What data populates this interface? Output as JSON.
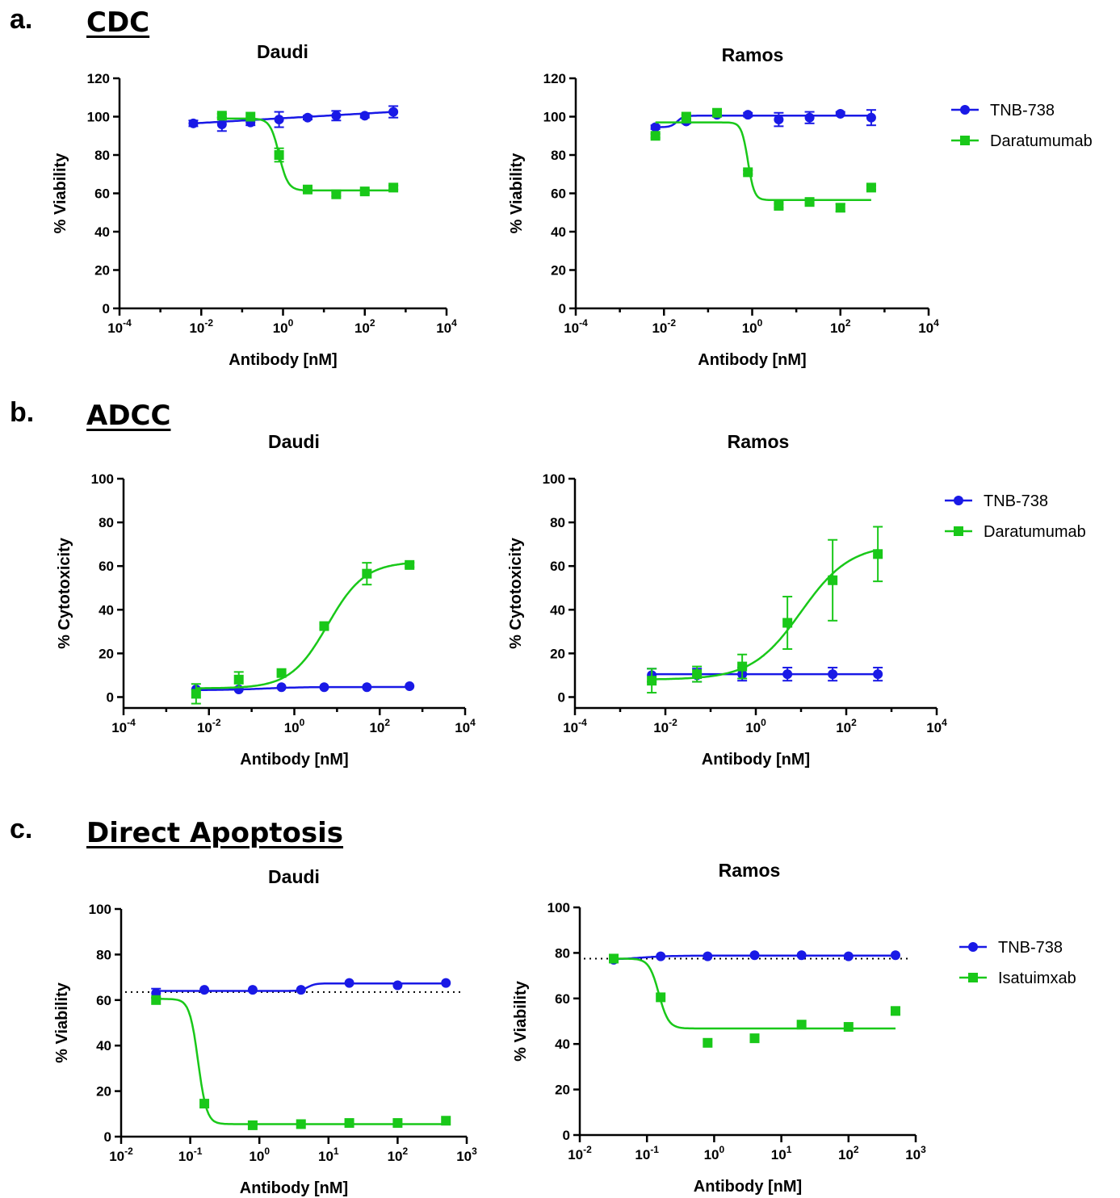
{
  "panels": [
    {
      "letter": "a.",
      "heading": "CDC"
    },
    {
      "letter": "b.",
      "heading": "ADCC"
    },
    {
      "letter": "c.",
      "heading": "Direct Apoptosis"
    }
  ],
  "colors": {
    "TNB-738": "#1919e6",
    "Daratumumab": "#19c819",
    "Isatuimxab": "#19c819",
    "axis": "#000000",
    "reference_line": "#000000"
  },
  "chart_data": [
    {
      "panel": "a",
      "type": "scatter",
      "title": "Daudi",
      "xlabel": "Antibody [nM]",
      "ylabel": "% Viability",
      "xscale": "log",
      "xlim": [
        0.0001,
        10000
      ],
      "ylim": [
        0,
        120
      ],
      "yticks": [
        0,
        20,
        40,
        60,
        80,
        100,
        120
      ],
      "xtick_exponents": [
        -4,
        -2,
        0,
        2,
        4
      ],
      "legend": null,
      "series": [
        {
          "name": "TNB-738",
          "marker": "circle",
          "x": [
            0.0064,
            0.032,
            0.16,
            0.8,
            4,
            20,
            100,
            500
          ],
          "y": [
            96.5,
            96,
            97,
            98.5,
            99.5,
            100.5,
            100.5,
            102.5
          ],
          "yerr": [
            1.5,
            3.5,
            1.5,
            4,
            1,
            2.5,
            1,
            3
          ],
          "fit": {
            "kind": "linear-log",
            "y_start": 96.5,
            "y_end": 102.5
          }
        },
        {
          "name": "Daratumumab",
          "marker": "square",
          "x": [
            0.032,
            0.16,
            0.8,
            4,
            20,
            100,
            500
          ],
          "y": [
            100.5,
            100,
            80,
            62,
            59.5,
            61,
            63
          ],
          "yerr": [
            1,
            0.5,
            3.5,
            1,
            1,
            1,
            1
          ],
          "fit": {
            "kind": "sigmoid",
            "top": 99,
            "bottom": 61.5,
            "ec50": 0.8,
            "hill": 4
          }
        }
      ]
    },
    {
      "panel": "a",
      "type": "scatter",
      "title": "Ramos",
      "xlabel": "Antibody [nM]",
      "ylabel": "% Viability",
      "xscale": "log",
      "xlim": [
        0.0001,
        10000
      ],
      "ylim": [
        0,
        120
      ],
      "yticks": [
        0,
        20,
        40,
        60,
        80,
        100,
        120
      ],
      "xtick_exponents": [
        -4,
        -2,
        0,
        2,
        4
      ],
      "legend": "right",
      "series": [
        {
          "name": "TNB-738",
          "marker": "circle",
          "x": [
            0.0064,
            0.032,
            0.16,
            0.8,
            4,
            20,
            100,
            500
          ],
          "y": [
            94.5,
            97.5,
            101,
            101,
            98.5,
            99.5,
            101.5,
            99.5
          ],
          "yerr": [
            1,
            1,
            1,
            1,
            3.5,
            3,
            1,
            4
          ],
          "fit": {
            "kind": "sigmoid",
            "top": 94.5,
            "bottom": 100.5,
            "ec50": 0.02,
            "hill": 6
          }
        },
        {
          "name": "Daratumumab",
          "marker": "square",
          "x": [
            0.0064,
            0.032,
            0.16,
            0.8,
            4,
            20,
            100,
            500
          ],
          "y": [
            90,
            100,
            102,
            71,
            53.5,
            55.5,
            52.5,
            63
          ],
          "yerr": [
            1,
            1,
            1,
            1,
            1,
            1,
            2,
            1
          ],
          "fit": {
            "kind": "sigmoid",
            "top": 97,
            "bottom": 56.5,
            "ec50": 0.8,
            "hill": 6
          }
        }
      ]
    },
    {
      "panel": "b",
      "type": "scatter",
      "title": "Daudi",
      "xlabel": "Antibody [nM]",
      "ylabel": "% Cytotoxicity",
      "xscale": "log",
      "xlim": [
        0.0001,
        10000
      ],
      "ylim": [
        -5,
        100
      ],
      "yticks": [
        0,
        20,
        40,
        60,
        80,
        100
      ],
      "xtick_exponents": [
        -4,
        -2,
        0,
        2,
        4
      ],
      "legend": null,
      "series": [
        {
          "name": "TNB-738",
          "marker": "circle",
          "x": [
            0.005,
            0.05,
            0.5,
            5,
            50,
            500
          ],
          "y": [
            3.5,
            3.5,
            4.5,
            4.5,
            4.5,
            5
          ],
          "yerr": [
            0.5,
            0.5,
            0.5,
            0.5,
            0.5,
            0.5
          ],
          "fit": {
            "kind": "sigmoid",
            "top": 3.2,
            "bottom": 4.6,
            "ec50": 0.2,
            "hill": 1
          }
        },
        {
          "name": "Daratumumab",
          "marker": "square",
          "x": [
            0.005,
            0.05,
            0.5,
            5,
            50,
            500
          ],
          "y": [
            1.5,
            8,
            11,
            32.5,
            56.5,
            60.5
          ],
          "yerr": [
            4.5,
            3.5,
            0.8,
            1,
            5,
            1
          ],
          "fit": {
            "kind": "sigmoid",
            "top": 4,
            "bottom": 62,
            "ec50": 6,
            "hill": 1
          }
        }
      ]
    },
    {
      "panel": "b",
      "type": "scatter",
      "title": "Ramos",
      "xlabel": "Antibody [nM]",
      "ylabel": "% Cytotoxicity",
      "xscale": "log",
      "xlim": [
        0.0001,
        10000
      ],
      "ylim": [
        -5,
        100
      ],
      "yticks": [
        0,
        20,
        40,
        60,
        80,
        100
      ],
      "xtick_exponents": [
        -4,
        -2,
        0,
        2,
        4
      ],
      "legend": "right",
      "series": [
        {
          "name": "TNB-738",
          "marker": "circle",
          "x": [
            0.005,
            0.05,
            0.5,
            5,
            50,
            500
          ],
          "y": [
            10,
            10,
            10.5,
            10.5,
            10.5,
            10.5
          ],
          "yerr": [
            3,
            3,
            3,
            3,
            3,
            3
          ],
          "fit": {
            "kind": "flat",
            "y": 10.5
          }
        },
        {
          "name": "Daratumumab",
          "marker": "square",
          "x": [
            0.005,
            0.05,
            0.5,
            5,
            50,
            500
          ],
          "y": [
            7.5,
            10.5,
            14,
            34,
            53.5,
            65.5
          ],
          "yerr": [
            5.5,
            3.5,
            5.5,
            12,
            18.5,
            12.5
          ],
          "fit": {
            "kind": "sigmoid",
            "top": 8,
            "bottom": 70,
            "ec50": 10,
            "hill": 0.8
          }
        }
      ]
    },
    {
      "panel": "c",
      "type": "scatter",
      "title": "Daudi",
      "xlabel": "Antibody [nM]",
      "ylabel": "% Viability",
      "xscale": "log",
      "xlim": [
        0.01,
        1000
      ],
      "ylim": [
        0,
        100
      ],
      "yticks": [
        0,
        20,
        40,
        60,
        80,
        100
      ],
      "xtick_exponents": [
        -2,
        -1,
        0,
        1,
        2,
        3
      ],
      "legend": null,
      "reference_line": {
        "y": 63.5,
        "style": "dotted"
      },
      "series": [
        {
          "name": "TNB-738",
          "marker": "circle",
          "x": [
            0.032,
            0.16,
            0.8,
            4,
            20,
            100,
            500
          ],
          "y": [
            63,
            64.5,
            64.5,
            64.5,
            67.5,
            66.5,
            67.5
          ],
          "yerr": [
            2,
            0.5,
            0.5,
            0.5,
            0.5,
            0.5,
            0.5
          ],
          "fit": {
            "kind": "sigmoid",
            "top": 64,
            "bottom": 67.3,
            "ec50": 5,
            "hill": 8
          }
        },
        {
          "name": "Isatuimxab",
          "marker": "square",
          "x": [
            0.032,
            0.16,
            0.8,
            4,
            20,
            100,
            500
          ],
          "y": [
            60,
            14.5,
            5,
            5.5,
            6,
            6,
            7
          ],
          "yerr": [
            0.5,
            0.5,
            0.5,
            0.5,
            0.5,
            0.5,
            0.5
          ],
          "fit": {
            "kind": "sigmoid",
            "top": 60.5,
            "bottom": 5.5,
            "ec50": 0.13,
            "hill": 7
          }
        }
      ]
    },
    {
      "panel": "c",
      "type": "scatter",
      "title": "Ramos",
      "xlabel": "Antibody [nM]",
      "ylabel": "% Viability",
      "xscale": "log",
      "xlim": [
        0.01,
        1000
      ],
      "ylim": [
        0,
        100
      ],
      "yticks": [
        0,
        20,
        40,
        60,
        80,
        100
      ],
      "xtick_exponents": [
        -2,
        -1,
        0,
        1,
        2,
        3
      ],
      "legend": "right",
      "reference_line": {
        "y": 77.5,
        "style": "dotted"
      },
      "series": [
        {
          "name": "TNB-738",
          "marker": "circle",
          "x": [
            0.032,
            0.16,
            0.8,
            4,
            20,
            100,
            500
          ],
          "y": [
            77,
            78.5,
            78.5,
            79,
            79,
            78.5,
            79
          ],
          "yerr": [
            0.5,
            0.5,
            0.5,
            0.5,
            0.5,
            0.5,
            0.5
          ],
          "fit": {
            "kind": "sigmoid",
            "top": 77,
            "bottom": 78.8,
            "ec50": 0.08,
            "hill": 2
          }
        },
        {
          "name": "Isatuimxab",
          "marker": "square",
          "x": [
            0.032,
            0.16,
            0.8,
            4,
            20,
            100,
            500
          ],
          "y": [
            77.5,
            60.5,
            40.5,
            42.5,
            48.5,
            47.5,
            54.5
          ],
          "yerr": [
            0.5,
            0.5,
            0.5,
            0.5,
            0.5,
            0.5,
            1.5
          ],
          "fit": {
            "kind": "sigmoid",
            "top": 77.5,
            "bottom": 46.8,
            "ec50": 0.15,
            "hill": 6
          }
        }
      ]
    }
  ]
}
